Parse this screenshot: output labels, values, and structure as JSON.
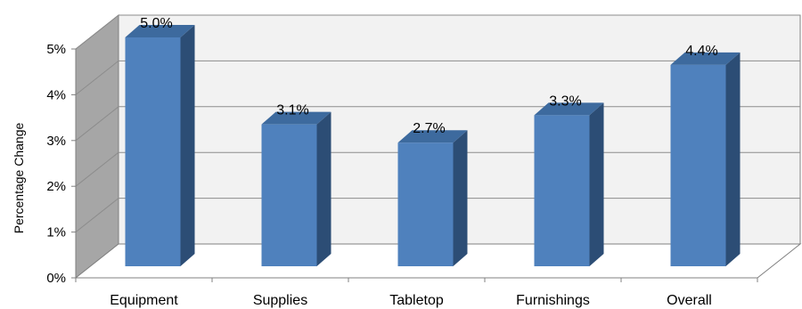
{
  "chart_data": {
    "type": "bar",
    "categories": [
      "Equipment",
      "Supplies",
      "Tabletop",
      "Furnishings",
      "Overall"
    ],
    "values": [
      5.0,
      3.1,
      2.7,
      3.3,
      4.4
    ],
    "data_labels": [
      "5.0%",
      "3.1%",
      "2.7%",
      "3.3%",
      "4.4%"
    ],
    "title": "",
    "xlabel": "",
    "ylabel": "Percentage Change",
    "ylim": [
      0,
      5
    ],
    "yticks": [
      0,
      1,
      2,
      3,
      4,
      5
    ],
    "ytick_labels": [
      "0%",
      "1%",
      "2%",
      "3%",
      "4%",
      "5%"
    ],
    "grid": true,
    "style": "3d-column",
    "colors": {
      "bar_front": "#4f81bd",
      "bar_side": "#2c4d75",
      "bar_top": "#3d6a9e",
      "back_wall": "#f2f2f2",
      "side_wall": "#a6a6a6",
      "floor": "#ffffff",
      "gridline": "#8c8c8c",
      "axis_line": "#808080"
    }
  }
}
